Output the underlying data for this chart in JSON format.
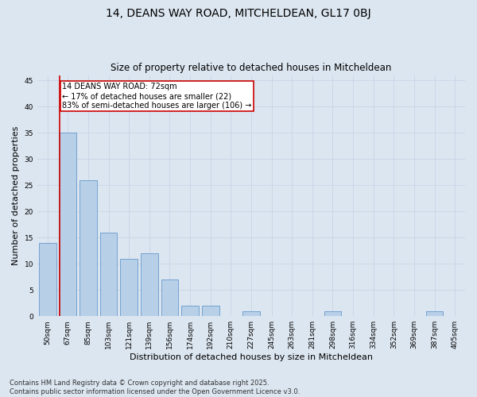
{
  "title": "14, DEANS WAY ROAD, MITCHELDEAN, GL17 0BJ",
  "subtitle": "Size of property relative to detached houses in Mitcheldean",
  "xlabel": "Distribution of detached houses by size in Mitcheldean",
  "ylabel": "Number of detached properties",
  "categories": [
    "50sqm",
    "67sqm",
    "85sqm",
    "103sqm",
    "121sqm",
    "139sqm",
    "156sqm",
    "174sqm",
    "192sqm",
    "210sqm",
    "227sqm",
    "245sqm",
    "263sqm",
    "281sqm",
    "298sqm",
    "316sqm",
    "334sqm",
    "352sqm",
    "369sqm",
    "387sqm",
    "405sqm"
  ],
  "values": [
    14,
    35,
    26,
    16,
    11,
    12,
    7,
    2,
    2,
    0,
    1,
    0,
    0,
    0,
    1,
    0,
    0,
    0,
    0,
    1,
    0
  ],
  "bar_color": "#b8cfe8",
  "bar_edge_color": "#6699cc",
  "grid_color": "#c8d4e8",
  "bg_color": "#dce6f0",
  "annotation_text": "14 DEANS WAY ROAD: 72sqm\n← 17% of detached houses are smaller (22)\n83% of semi-detached houses are larger (106) →",
  "annotation_box_color": "#ffffff",
  "annotation_box_edge": "#cc0000",
  "vline_color": "#cc0000",
  "ylim": [
    0,
    46
  ],
  "yticks": [
    0,
    5,
    10,
    15,
    20,
    25,
    30,
    35,
    40,
    45
  ],
  "footnote": "Contains HM Land Registry data © Crown copyright and database right 2025.\nContains public sector information licensed under the Open Government Licence v3.0.",
  "title_fontsize": 10,
  "subtitle_fontsize": 8.5,
  "axis_label_fontsize": 8,
  "tick_fontsize": 6.5,
  "annotation_fontsize": 7,
  "footnote_fontsize": 6
}
